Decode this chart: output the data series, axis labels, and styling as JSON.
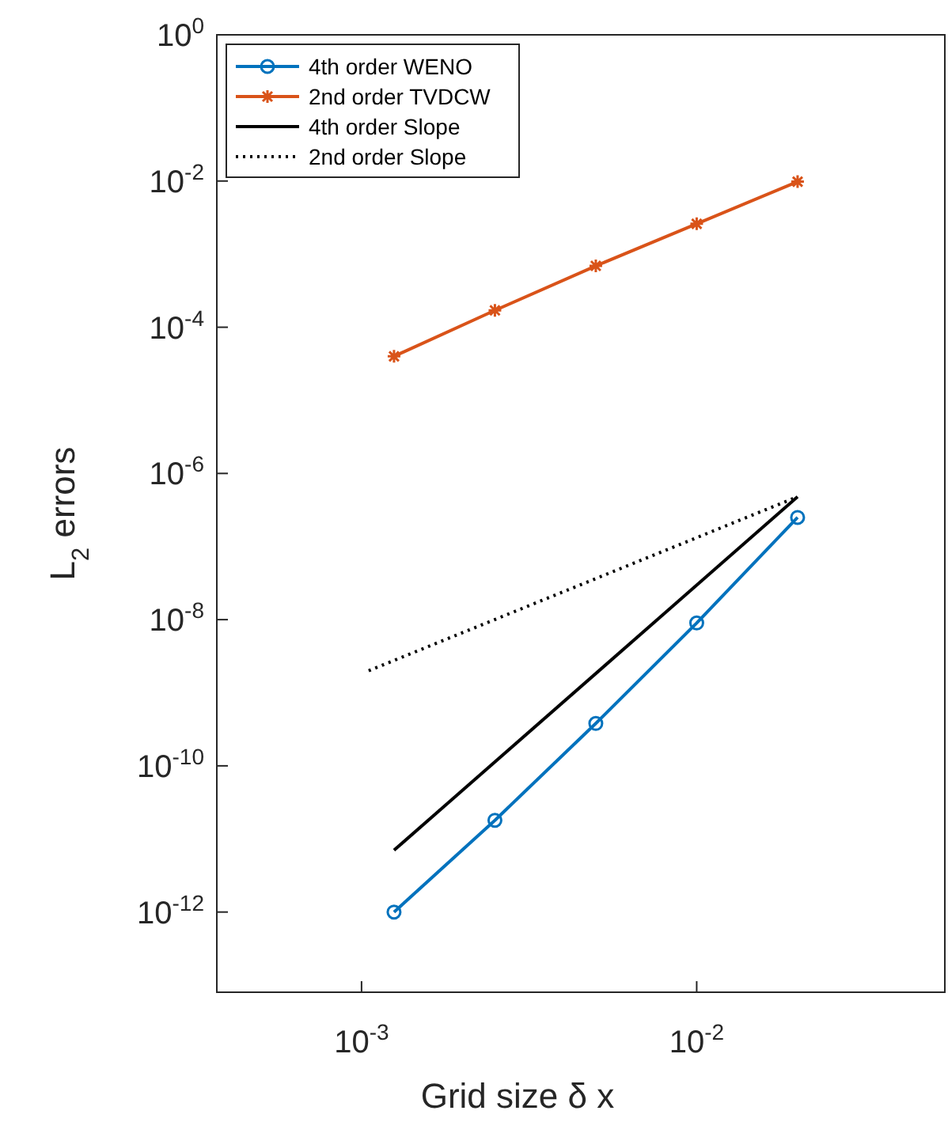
{
  "chart_data": {
    "type": "line",
    "xlabel": "Grid size δ x",
    "ylabel": "L$_{2}$ errors",
    "log": "xy",
    "xlim": [
      0.00037,
      0.055
    ],
    "ylim": [
      8e-14,
      1
    ],
    "xticks": [
      {
        "value": 0.001,
        "label": "10$^{-3}$"
      },
      {
        "value": 0.01,
        "label": "10$^{-2}$"
      }
    ],
    "yticks": [
      {
        "value": 1e-12,
        "label": "10$^{-12}$"
      },
      {
        "value": 1e-10,
        "label": "10$^{-10}$"
      },
      {
        "value": 1e-08,
        "label": "10$^{-8}$"
      },
      {
        "value": 1e-06,
        "label": "10$^{-6}$"
      },
      {
        "value": 0.0001,
        "label": "10$^{-4}$"
      },
      {
        "value": 0.01,
        "label": "10$^{-2}$"
      },
      {
        "value": 1,
        "label": "10$^{0}$"
      }
    ],
    "grid": false,
    "legend": "top left",
    "x": [
      0.00125,
      0.0025,
      0.005,
      0.01,
      0.02
    ],
    "series": [
      {
        "name": "4th order WENO",
        "color": "#0072bd",
        "marker": "circle",
        "line_style": "solid",
        "values": [
          1e-12,
          1.8e-11,
          3.8e-10,
          9e-09,
          2.5e-07
        ]
      },
      {
        "name": "2nd order TVDCW",
        "color": "#d95319",
        "marker": "cross",
        "line_style": "solid",
        "values": [
          4e-05,
          0.00017,
          0.00069,
          0.0026,
          0.0098
        ]
      },
      {
        "name": "4th order Slope",
        "color": "#000000",
        "marker": "none",
        "line_style": "solid",
        "x": [
          0.00125,
          0.02
        ],
        "values": [
          7e-12,
          4.8e-07
        ]
      },
      {
        "name": "2nd order Slope",
        "color": "#000000",
        "marker": "none",
        "line_style": "dotted",
        "x": [
          0.00105,
          0.02
        ],
        "values": [
          2e-09,
          4.8e-07
        ]
      }
    ]
  }
}
